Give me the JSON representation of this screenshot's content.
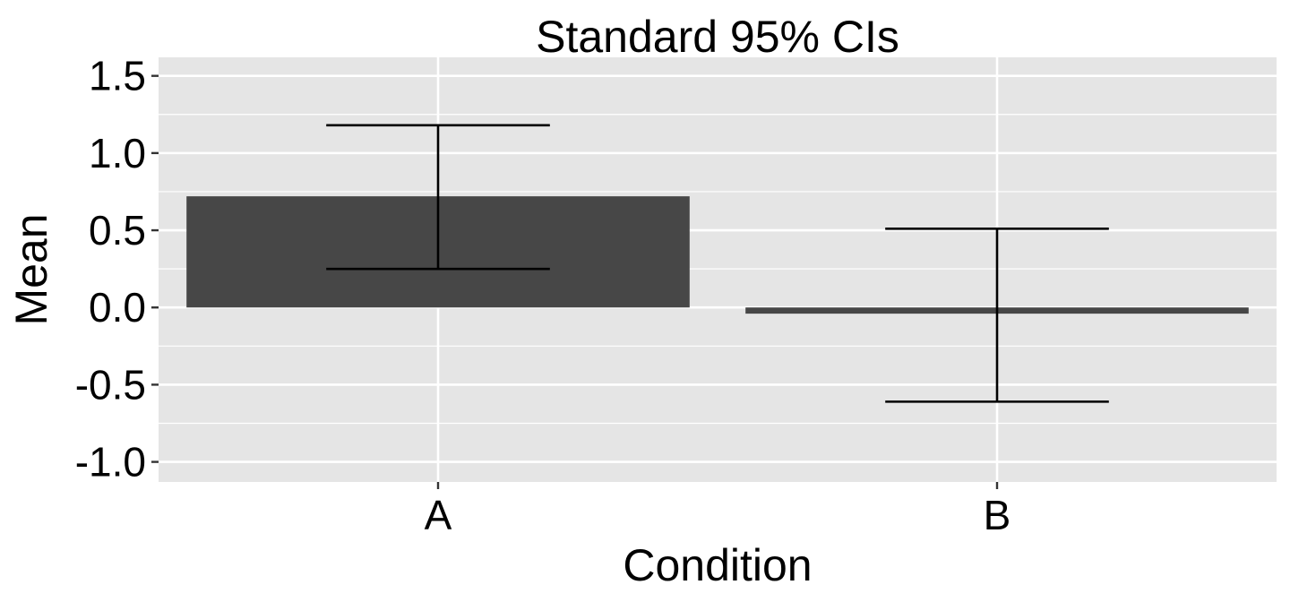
{
  "chart_data": {
    "type": "bar",
    "title": "Standard 95% CIs",
    "xlabel": "Condition",
    "ylabel": "Mean",
    "categories": [
      "A",
      "B"
    ],
    "values": [
      0.72,
      -0.04
    ],
    "error_bars": [
      {
        "lower": 0.25,
        "upper": 1.18
      },
      {
        "lower": -0.61,
        "upper": 0.51
      }
    ],
    "ylim": [
      -1.13,
      1.62
    ],
    "yticks": [
      -1.0,
      -0.5,
      0.0,
      0.5,
      1.0,
      1.5
    ],
    "ytick_labels": [
      "-1.0",
      "-0.5",
      "0.0",
      "0.5",
      "1.0",
      "1.5"
    ],
    "grid": true,
    "legend": "none"
  },
  "colors": {
    "panel_background": "#e5e5e5",
    "gridline": "#ffffff",
    "bar_fill": "#474747",
    "error_bar": "#000000",
    "axis_tick": "#333333",
    "text": "#000000"
  }
}
